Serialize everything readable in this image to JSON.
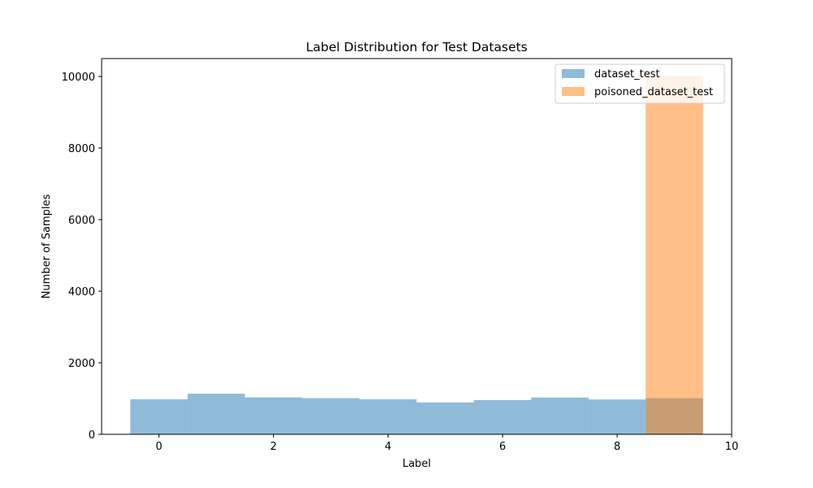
{
  "chart_data": {
    "type": "bar",
    "title": "Label Distribution for Test Datasets",
    "xlabel": "Label",
    "ylabel": "Number of Samples",
    "xlim": [
      -1,
      10
    ],
    "ylim": [
      0,
      10500
    ],
    "xticks": [
      0,
      2,
      4,
      6,
      8,
      10
    ],
    "yticks": [
      0,
      2000,
      4000,
      6000,
      8000,
      10000
    ],
    "categories": [
      0,
      1,
      2,
      3,
      4,
      5,
      6,
      7,
      8,
      9
    ],
    "bar_width": 1,
    "alpha": 0.5,
    "legend_position": "top-right",
    "series": [
      {
        "name": "dataset_test",
        "color": "#1f77b4",
        "values": [
          980,
          1135,
          1032,
          1010,
          982,
          892,
          958,
          1028,
          974,
          1009
        ]
      },
      {
        "name": "poisoned_dataset_test",
        "color": "#ff7f0e",
        "values": [
          0,
          0,
          0,
          0,
          0,
          0,
          0,
          0,
          0,
          10000
        ]
      }
    ]
  }
}
